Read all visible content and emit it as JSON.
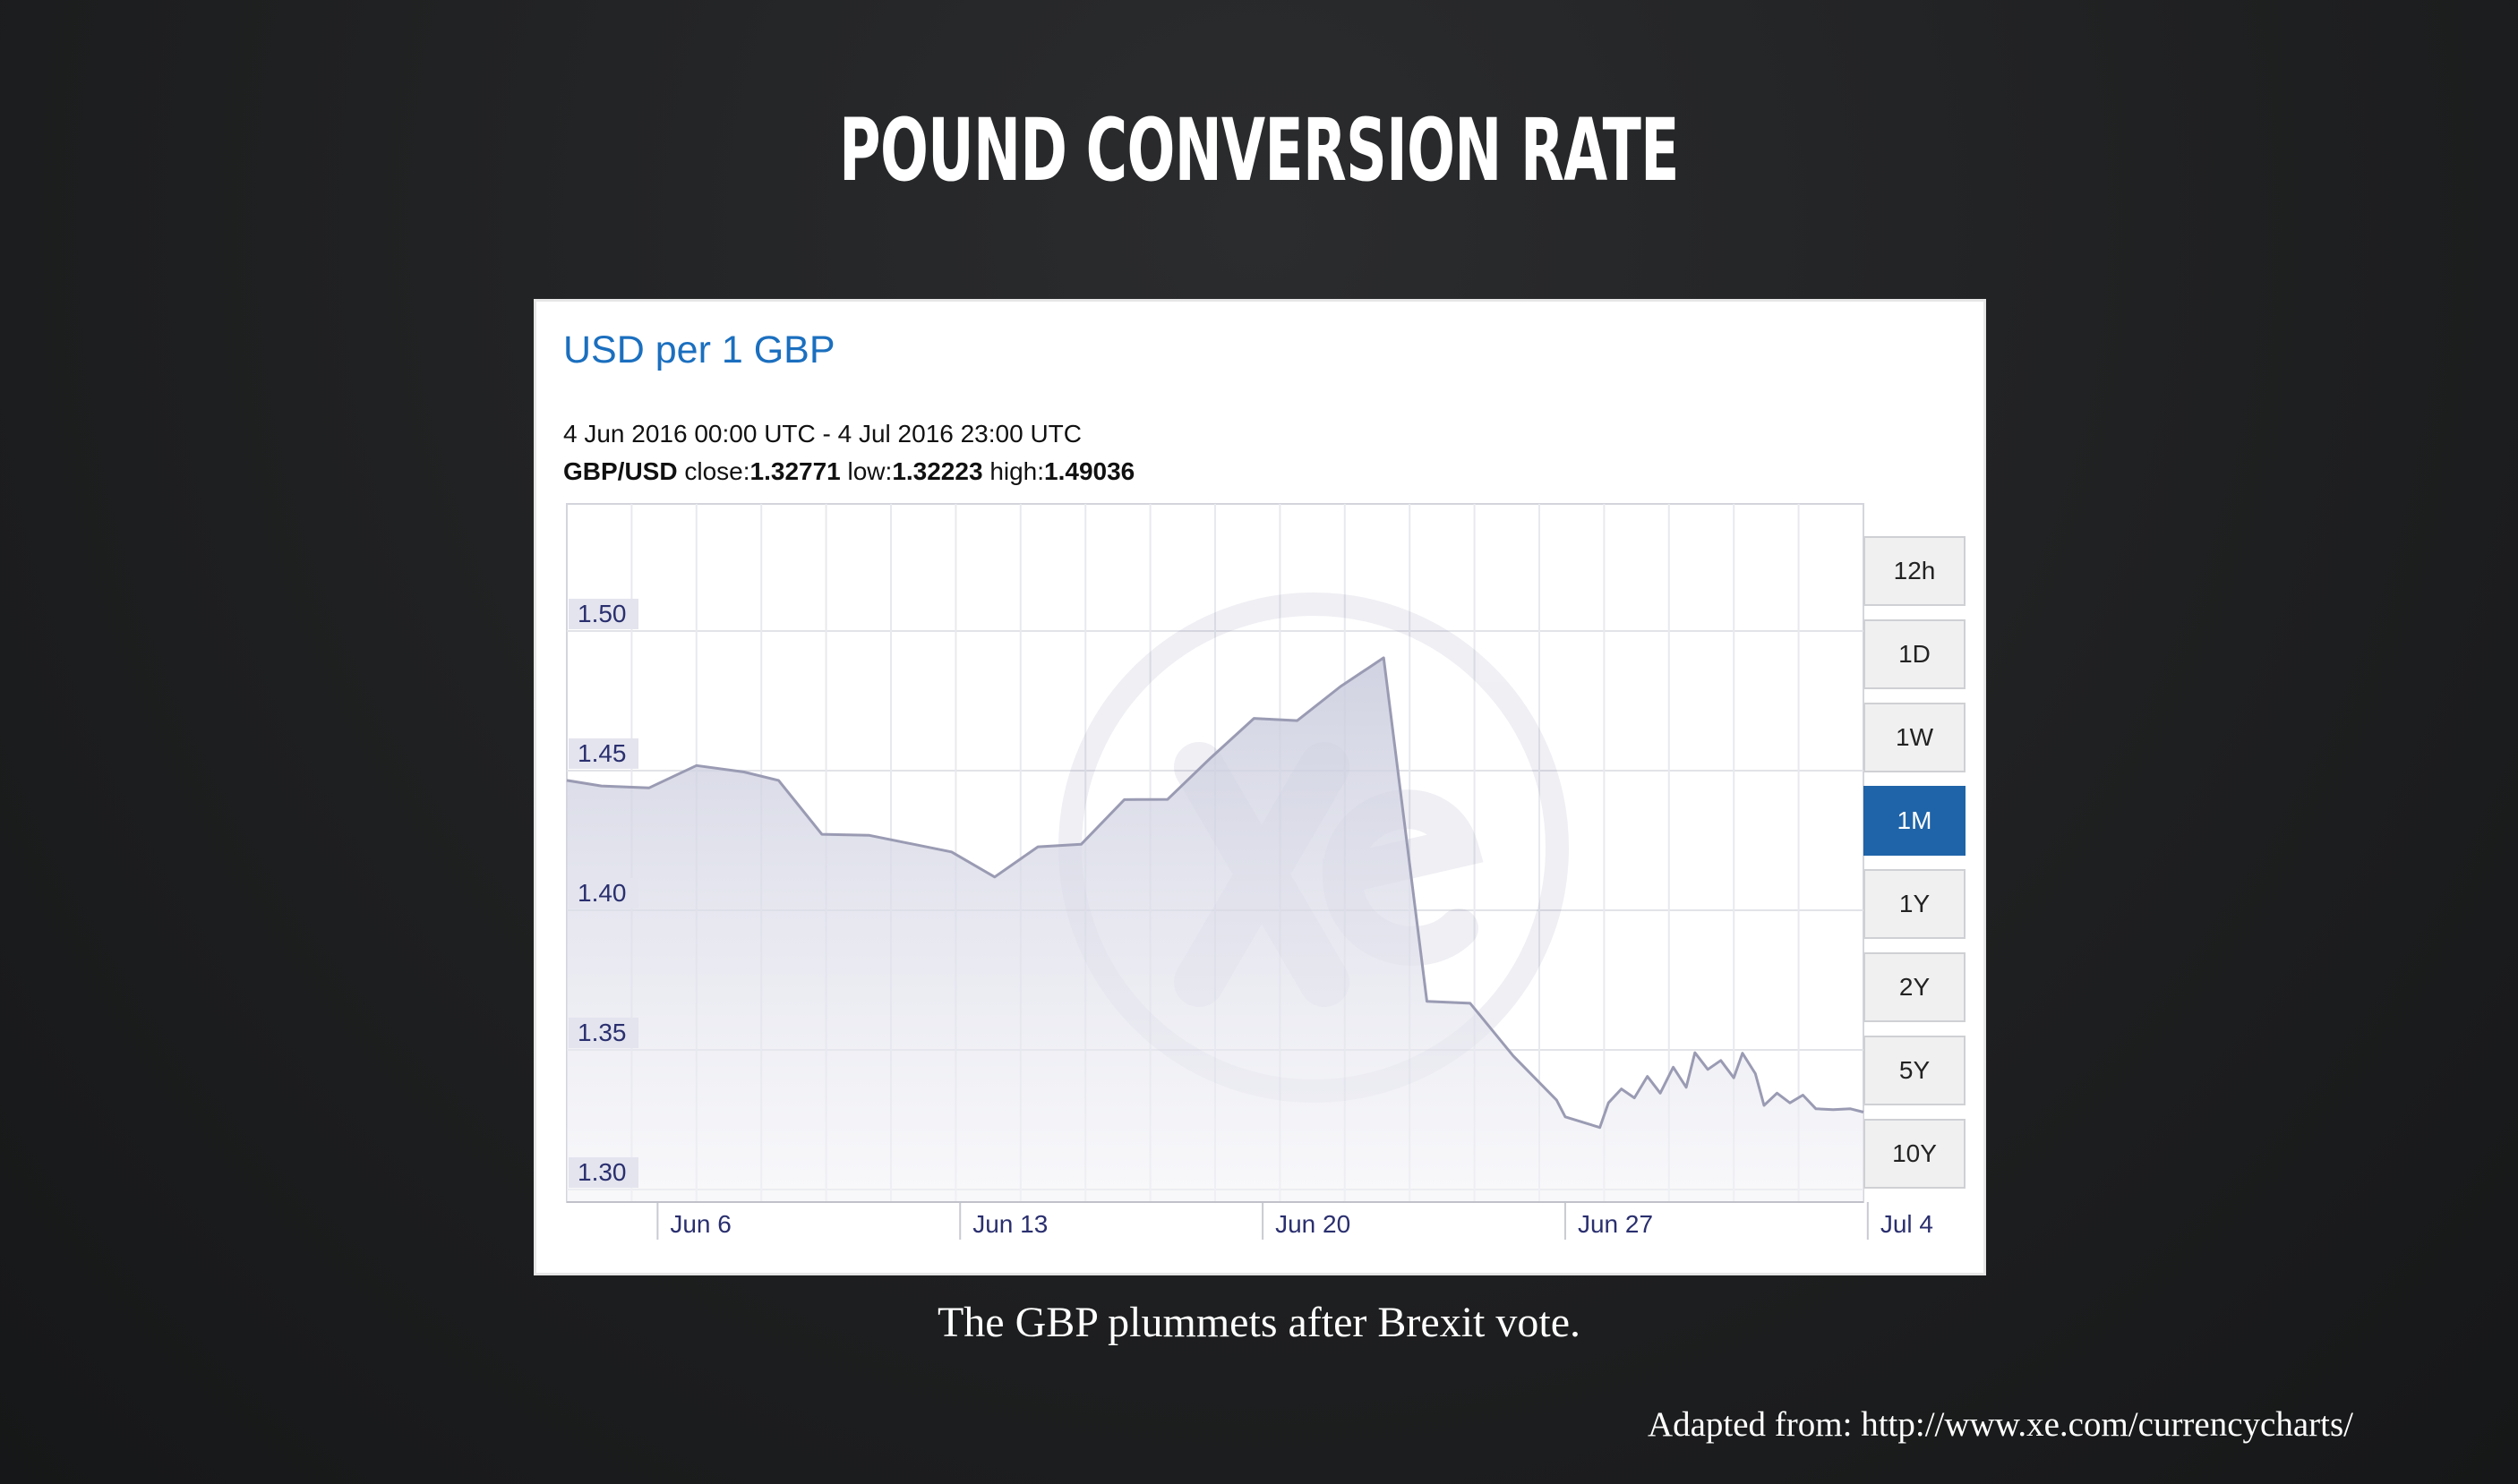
{
  "slide": {
    "title": "POUND CONVERSION RATE",
    "caption": "The GBP plummets after Brexit vote.",
    "source": "Adapted from: http://www.xe.com/currencycharts/"
  },
  "panel": {
    "heading": "USD per 1 GBP",
    "date_range": "4 Jun 2016 00:00 UTC - 4 Jul 2016 23:00 UTC",
    "pair_label": "GBP/USD",
    "close_label": "close:",
    "close_value": "1.32771",
    "low_label": "low:",
    "low_value": "1.32223",
    "high_label": "high:",
    "high_value": "1.49036",
    "range_buttons": [
      "12h",
      "1D",
      "1W",
      "1M",
      "1Y",
      "2Y",
      "5Y",
      "10Y"
    ],
    "active_range": "1M"
  },
  "colors": {
    "title_blue": "#1b6fbf",
    "line": "#9a9bb3",
    "fill_top": "#c9cbdd",
    "fill_bottom": "#f4f4f8",
    "active_button": "#1f64a8",
    "y_label_bg": "#e3e4ee",
    "y_label_text": "#2a2f6e"
  },
  "chart_data": {
    "type": "area",
    "title": "USD per 1 GBP",
    "x_unit": "days since 4 Jun 2016",
    "xlim": [
      0,
      30
    ],
    "ylim": [
      1.2955,
      1.5455
    ],
    "y_ticks": [
      1.3,
      1.35,
      1.4,
      1.45,
      1.5
    ],
    "y_tick_labels": [
      "1.30",
      "1.35",
      "1.40",
      "1.45",
      "1.50"
    ],
    "x_ticks": [
      {
        "label": "Jun 6",
        "x": 2.1
      },
      {
        "label": "Jun 13",
        "x": 9.1
      },
      {
        "label": "Jun 20",
        "x": 16.1
      },
      {
        "label": "Jun 27",
        "x": 23.1
      },
      {
        "label": "Jul 4",
        "x": 30.1
      }
    ],
    "grid": true,
    "legend": "none",
    "series": [
      {
        "name": "GBP/USD",
        "points": [
          [
            0.0,
            1.4465
          ],
          [
            0.8,
            1.4445
          ],
          [
            1.9,
            1.4438
          ],
          [
            3.0,
            1.4518
          ],
          [
            4.1,
            1.4495
          ],
          [
            4.9,
            1.4465
          ],
          [
            5.9,
            1.4272
          ],
          [
            7.0,
            1.4268
          ],
          [
            8.9,
            1.4209
          ],
          [
            9.9,
            1.4119
          ],
          [
            10.9,
            1.4227
          ],
          [
            11.9,
            1.4236
          ],
          [
            12.9,
            1.4396
          ],
          [
            13.9,
            1.4397
          ],
          [
            14.9,
            1.4546
          ],
          [
            15.9,
            1.4687
          ],
          [
            16.9,
            1.4679
          ],
          [
            17.9,
            1.4801
          ],
          [
            18.9,
            1.4904
          ],
          [
            19.9,
            1.3674
          ],
          [
            20.9,
            1.3667
          ],
          [
            21.9,
            1.3478
          ],
          [
            22.9,
            1.332
          ],
          [
            23.1,
            1.326
          ],
          [
            23.9,
            1.3222
          ],
          [
            24.1,
            1.331
          ],
          [
            24.4,
            1.336
          ],
          [
            24.7,
            1.3328
          ],
          [
            25.0,
            1.3405
          ],
          [
            25.3,
            1.3345
          ],
          [
            25.6,
            1.3438
          ],
          [
            25.9,
            1.3366
          ],
          [
            26.1,
            1.349
          ],
          [
            26.4,
            1.343
          ],
          [
            26.7,
            1.3462
          ],
          [
            27.0,
            1.34
          ],
          [
            27.2,
            1.3488
          ],
          [
            27.5,
            1.3415
          ],
          [
            27.7,
            1.3301
          ],
          [
            28.0,
            1.3345
          ],
          [
            28.3,
            1.331
          ],
          [
            28.6,
            1.3338
          ],
          [
            28.9,
            1.3289
          ],
          [
            29.3,
            1.3286
          ],
          [
            29.7,
            1.3289
          ],
          [
            30.0,
            1.3277
          ]
        ]
      }
    ]
  }
}
